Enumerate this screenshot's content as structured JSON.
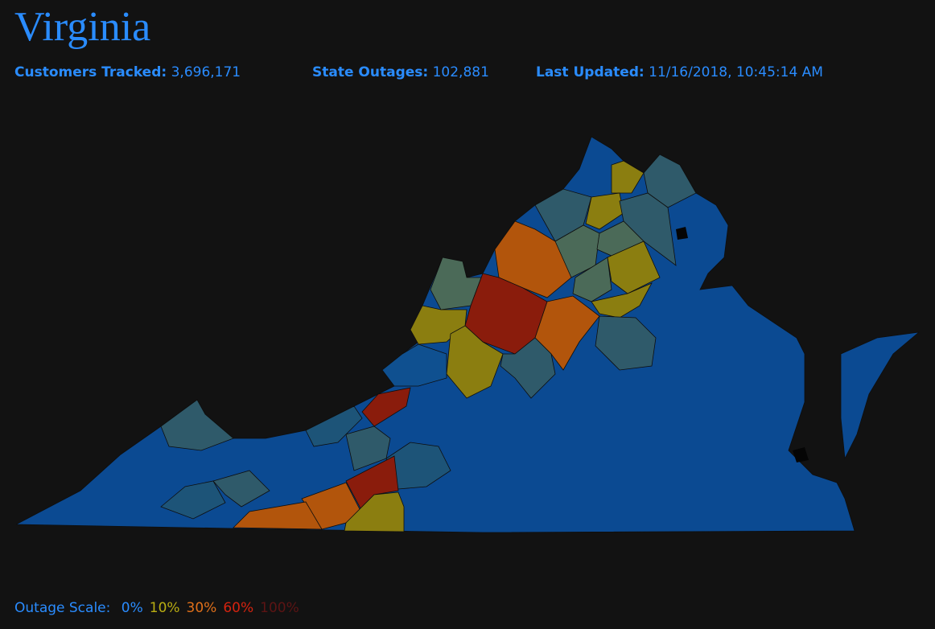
{
  "header": {
    "title": "Virginia"
  },
  "stats": [
    {
      "label": "Customers Tracked:",
      "value": "3,696,171"
    },
    {
      "label": "State Outages:",
      "value": "102,881"
    },
    {
      "label": "Last Updated:",
      "value": "11/16/2018, 10:45:14 AM"
    }
  ],
  "scale": {
    "label": "Outage Scale:",
    "steps": [
      {
        "text": "0%",
        "color": "#2a8cff"
      },
      {
        "text": "10%",
        "color": "#b9ad12"
      },
      {
        "text": "30%",
        "color": "#e0701a"
      },
      {
        "text": "60%",
        "color": "#d4230f"
      },
      {
        "text": "100%",
        "color": "#5c1414"
      }
    ]
  }
}
